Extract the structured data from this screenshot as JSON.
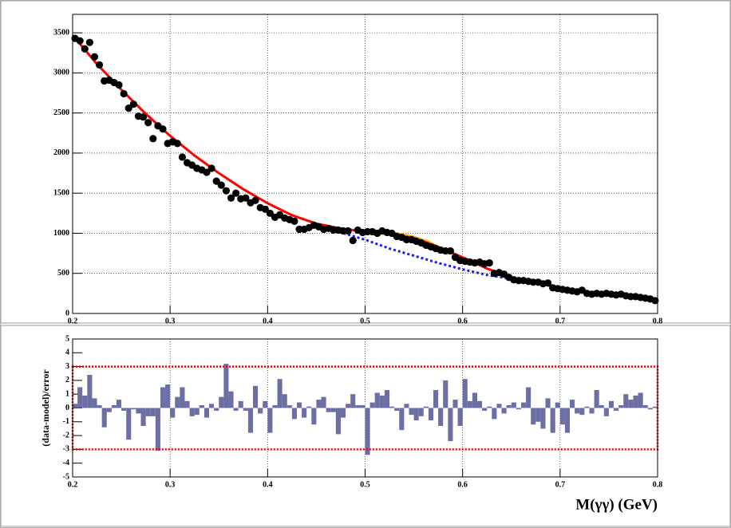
{
  "chart_data": [
    {
      "type": "scatter",
      "xlim": [
        0.2,
        0.8
      ],
      "ylim": [
        0,
        3730
      ],
      "xticks": [
        0.2,
        0.3,
        0.4,
        0.5,
        0.6,
        0.7,
        0.8
      ],
      "yticks": [
        0,
        500,
        1000,
        1500,
        2000,
        2500,
        3000,
        3500
      ],
      "grid": true,
      "series": [
        {
          "style": "band",
          "color": "#f5b800",
          "x": [
            0.505,
            0.52,
            0.535,
            0.55,
            0.565,
            0.58
          ],
          "values": [
            1000,
            990,
            955,
            915,
            855,
            790
          ],
          "upper": [
            1020,
            1030,
            1000,
            960,
            900,
            800
          ]
        },
        {
          "style": "dashed",
          "color": "#1a1aff",
          "x": [
            0.45,
            0.475,
            0.5,
            0.525,
            0.55,
            0.575,
            0.6,
            0.625,
            0.65,
            0.675,
            0.69
          ],
          "values": [
            1120,
            1010,
            920,
            810,
            720,
            630,
            550,
            480,
            430,
            390,
            370
          ]
        },
        {
          "style": "line",
          "color": "#ff0000",
          "x": [
            0.2,
            0.225,
            0.25,
            0.275,
            0.3,
            0.325,
            0.35,
            0.375,
            0.4,
            0.425,
            0.45,
            0.475,
            0.5,
            0.525,
            0.55,
            0.575,
            0.6,
            0.625,
            0.65,
            0.675,
            0.7,
            0.725,
            0.75,
            0.775,
            0.8
          ],
          "values": [
            3470,
            3110,
            2790,
            2490,
            2215,
            1970,
            1750,
            1550,
            1375,
            1225,
            1120,
            1060,
            1020,
            995,
            940,
            830,
            700,
            560,
            450,
            380,
            320,
            270,
            230,
            200,
            170
          ]
        },
        {
          "style": "markers",
          "color": "#000000",
          "x": [
            0.2025,
            0.2075,
            0.2125,
            0.2175,
            0.2225,
            0.2275,
            0.2325,
            0.2375,
            0.2425,
            0.2475,
            0.2525,
            0.2575,
            0.2625,
            0.2675,
            0.2725,
            0.2775,
            0.2825,
            0.2875,
            0.2925,
            0.2975,
            0.3025,
            0.3075,
            0.3125,
            0.3175,
            0.3225,
            0.3275,
            0.3325,
            0.3375,
            0.3425,
            0.3475,
            0.3525,
            0.3575,
            0.3625,
            0.3675,
            0.3725,
            0.3775,
            0.3825,
            0.3875,
            0.3925,
            0.3975,
            0.4025,
            0.4075,
            0.4125,
            0.4175,
            0.4225,
            0.4275,
            0.4325,
            0.4375,
            0.4425,
            0.4475,
            0.4525,
            0.4575,
            0.4625,
            0.4675,
            0.4725,
            0.4775,
            0.4825,
            0.4875,
            0.4925,
            0.4975,
            0.5025,
            0.5075,
            0.5125,
            0.5175,
            0.5225,
            0.5275,
            0.5325,
            0.5375,
            0.5425,
            0.5475,
            0.5525,
            0.5575,
            0.5625,
            0.5675,
            0.5725,
            0.5775,
            0.5825,
            0.5875,
            0.5925,
            0.5975,
            0.6025,
            0.6075,
            0.6125,
            0.6175,
            0.6225,
            0.6275,
            0.6325,
            0.6375,
            0.6425,
            0.6475,
            0.6525,
            0.6575,
            0.6625,
            0.6675,
            0.6725,
            0.6775,
            0.6825,
            0.6875,
            0.6925,
            0.6975,
            0.7025,
            0.7075,
            0.7125,
            0.7175,
            0.7225,
            0.7275,
            0.7325,
            0.7375,
            0.7425,
            0.7475,
            0.7525,
            0.7575,
            0.7625,
            0.7675,
            0.7725,
            0.7775,
            0.7825,
            0.7875,
            0.7925,
            0.7975
          ],
          "values": [
            3430,
            3400,
            3300,
            3380,
            3200,
            3100,
            2900,
            2910,
            2880,
            2850,
            2740,
            2560,
            2610,
            2460,
            2450,
            2380,
            2180,
            2340,
            2300,
            2120,
            2140,
            2120,
            1950,
            1880,
            1850,
            1810,
            1790,
            1760,
            1810,
            1650,
            1600,
            1530,
            1440,
            1500,
            1430,
            1440,
            1380,
            1410,
            1320,
            1300,
            1250,
            1200,
            1230,
            1190,
            1170,
            1150,
            1050,
            1050,
            1070,
            1100,
            1080,
            1050,
            1060,
            1040,
            1040,
            1030,
            1030,
            910,
            1040,
            1010,
            1020,
            1020,
            1000,
            1030,
            1010,
            1000,
            960,
            950,
            920,
            920,
            900,
            880,
            850,
            830,
            810,
            790,
            780,
            780,
            700,
            660,
            650,
            640,
            630,
            640,
            620,
            630,
            500,
            510,
            490,
            450,
            420,
            410,
            410,
            400,
            390,
            390,
            370,
            380,
            320,
            310,
            300,
            290,
            280,
            270,
            290,
            250,
            240,
            250,
            240,
            250,
            240,
            230,
            240,
            220,
            210,
            210,
            200,
            190,
            180,
            160
          ]
        }
      ]
    },
    {
      "type": "histogram",
      "xlabel": "M(γγ) (GeV)",
      "ylabel": "(data-model)/error",
      "xlim": [
        0.2,
        0.8
      ],
      "ylim": [
        -5,
        5
      ],
      "xticks": [
        0.2,
        0.3,
        0.4,
        0.5,
        0.6,
        0.7,
        0.8
      ],
      "yticks": [
        -5,
        -4,
        -3,
        -2,
        -1,
        0,
        1,
        2,
        3,
        4,
        5
      ],
      "grid": true,
      "color": "#6b6fa3",
      "reference_lines": [
        -3,
        3
      ],
      "reference_color": "#ff0000",
      "bins": [
        0.2,
        0.205,
        0.21,
        0.215,
        0.22,
        0.225,
        0.23,
        0.235,
        0.24,
        0.245,
        0.25,
        0.255,
        0.26,
        0.265,
        0.27,
        0.275,
        0.28,
        0.285,
        0.29,
        0.295,
        0.3,
        0.305,
        0.31,
        0.315,
        0.32,
        0.325,
        0.33,
        0.335,
        0.34,
        0.345,
        0.35,
        0.355,
        0.36,
        0.365,
        0.37,
        0.375,
        0.38,
        0.385,
        0.39,
        0.395,
        0.4,
        0.405,
        0.41,
        0.415,
        0.42,
        0.425,
        0.43,
        0.435,
        0.44,
        0.445,
        0.45,
        0.455,
        0.46,
        0.465,
        0.47,
        0.475,
        0.48,
        0.485,
        0.49,
        0.495,
        0.5,
        0.505,
        0.51,
        0.515,
        0.52,
        0.525,
        0.53,
        0.535,
        0.54,
        0.545,
        0.55,
        0.555,
        0.56,
        0.565,
        0.57,
        0.575,
        0.58,
        0.585,
        0.59,
        0.595,
        0.6,
        0.605,
        0.61,
        0.615,
        0.62,
        0.625,
        0.63,
        0.635,
        0.64,
        0.645,
        0.65,
        0.655,
        0.66,
        0.665,
        0.67,
        0.675,
        0.68,
        0.685,
        0.69,
        0.695,
        0.7,
        0.705,
        0.71,
        0.715,
        0.72,
        0.725,
        0.73,
        0.735,
        0.74,
        0.745,
        0.75,
        0.755,
        0.76,
        0.765,
        0.77,
        0.775,
        0.78,
        0.785,
        0.79,
        0.795,
        0.8
      ],
      "values": [
        0.3,
        1.5,
        0.9,
        2.4,
        0.7,
        0.2,
        -1.4,
        -0.3,
        0.2,
        0.6,
        -0.2,
        -2.3,
        -0.1,
        -0.4,
        -1.3,
        -0.6,
        -0.6,
        -3.1,
        1.5,
        1.7,
        -0.7,
        0.8,
        1.5,
        0.5,
        -0.6,
        -0.5,
        0.2,
        -0.7,
        0.3,
        -0.2,
        0.8,
        3.2,
        1.2,
        -0.2,
        0.5,
        -0.2,
        -1.8,
        1.6,
        -0.4,
        0.5,
        -1.8,
        0.2,
        2.1,
        1.0,
        0.2,
        -0.8,
        0.4,
        -0.7,
        0.1,
        -1.2,
        0.6,
        0.8,
        -0.3,
        -0.3,
        -1.9,
        -0.7,
        0.3,
        1.0,
        0.2,
        0.2,
        -3.4,
        0.4,
        1.1,
        0.9,
        1.3,
        0.1,
        -0.2,
        -1.6,
        0.3,
        -0.5,
        -0.9,
        -0.6,
        0.1,
        -0.9,
        1.3,
        -1.3,
        2.0,
        -2.4,
        0.6,
        -1.3,
        2.1,
        0.5,
        1.1,
        0.5,
        -0.2,
        0.1,
        -0.8,
        0.3,
        -0.4,
        0.2,
        0.4,
        -0.1,
        0.4,
        1.5,
        -1.2,
        -1.0,
        -1.5,
        0.7,
        -1.8,
        0.4,
        -1.2,
        -1.8,
        0.6,
        -0.4,
        -0.5,
        0.1,
        -0.4,
        1.3,
        0.2,
        -0.6,
        0.5,
        -0.2,
        0.2,
        1.0,
        0.6,
        0.9,
        1.1,
        0.2,
        -0.1,
        0.1
      ]
    }
  ]
}
